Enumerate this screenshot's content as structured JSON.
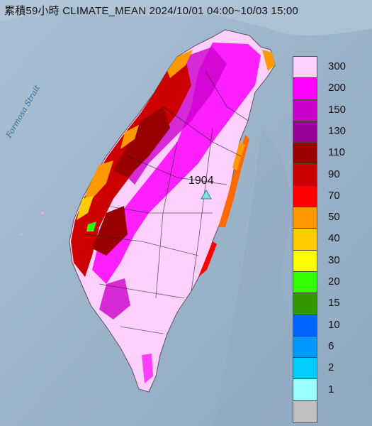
{
  "title": "累積59小時 CLIMATE_MEAN 2024/10/01 04:00~10/03 15:00",
  "sea_label": "Formosa Strait",
  "station": {
    "label": "1904",
    "marker": "triangle-icon",
    "marker_color": "#7fe3e8"
  },
  "legend": {
    "bins": [
      {
        "label": "300",
        "color": "#fdd0fd"
      },
      {
        "label": "200",
        "color": "#fe00fe"
      },
      {
        "label": "150",
        "color": "#cc00cc"
      },
      {
        "label": "130",
        "color": "#990099"
      },
      {
        "label": "110",
        "color": "#990000"
      },
      {
        "label": "90",
        "color": "#cc0000"
      },
      {
        "label": "70",
        "color": "#ff0000"
      },
      {
        "label": "50",
        "color": "#ff9900"
      },
      {
        "label": "40",
        "color": "#ffcc00"
      },
      {
        "label": "30",
        "color": "#ffff00"
      },
      {
        "label": "20",
        "color": "#33ff00"
      },
      {
        "label": "15",
        "color": "#339900"
      },
      {
        "label": "10",
        "color": "#0066ff"
      },
      {
        "label": "6",
        "color": "#0099ff"
      },
      {
        "label": "2",
        "color": "#00ccff"
      },
      {
        "label": "1",
        "color": "#99ffff"
      },
      {
        "label": "",
        "color": "#c0c0c0"
      }
    ]
  }
}
